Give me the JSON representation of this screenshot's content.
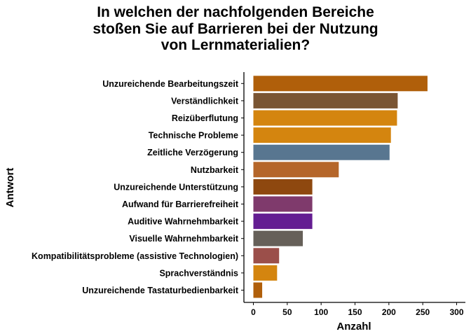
{
  "chart_data": {
    "type": "bar",
    "orientation": "horizontal",
    "title": "In welchen der nachfolgenden Bereiche stoßen Sie auf Barrieren bei der Nutzung von Lernmaterialien?",
    "title_lines": [
      "In welchen der nachfolgenden Bereiche",
      "stoßen Sie auf Barrieren bei der Nutzung",
      "von Lernmaterialien?"
    ],
    "xlabel": "Anzahl",
    "ylabel": "Antwort",
    "xlim": [
      0,
      300
    ],
    "xticks": [
      "0",
      "50",
      "100",
      "150",
      "200",
      "250",
      "300"
    ],
    "grid": false,
    "categories": [
      "Unzureichende Bearbeitungszeit",
      "Verständlichkeit",
      "Reizüberflutung",
      "Technische Probleme",
      "Zeitliche Verzögerung",
      "Nutzbarkeit",
      "Unzureichende Unterstützung",
      "Aufwand für Barrierefreiheit",
      "Auditive Wahrnehmbarkeit",
      "Visuelle Wahrnehmbarkeit",
      "Kompatibilitätsprobleme (assistive Technologien)",
      "Sprachverständnis",
      "Unzureichende Tastaturbedienbarkeit"
    ],
    "values": [
      257,
      213,
      212,
      203,
      201,
      126,
      87,
      87,
      87,
      73,
      38,
      35,
      13
    ],
    "colors": [
      "#B05F0A",
      "#7A5533",
      "#D4850F",
      "#D4850F",
      "#587690",
      "#B5662A",
      "#8E480F",
      "#7F3A6C",
      "#641D92",
      "#666059",
      "#9B4F4A",
      "#D4850F",
      "#B05F0A"
    ]
  }
}
